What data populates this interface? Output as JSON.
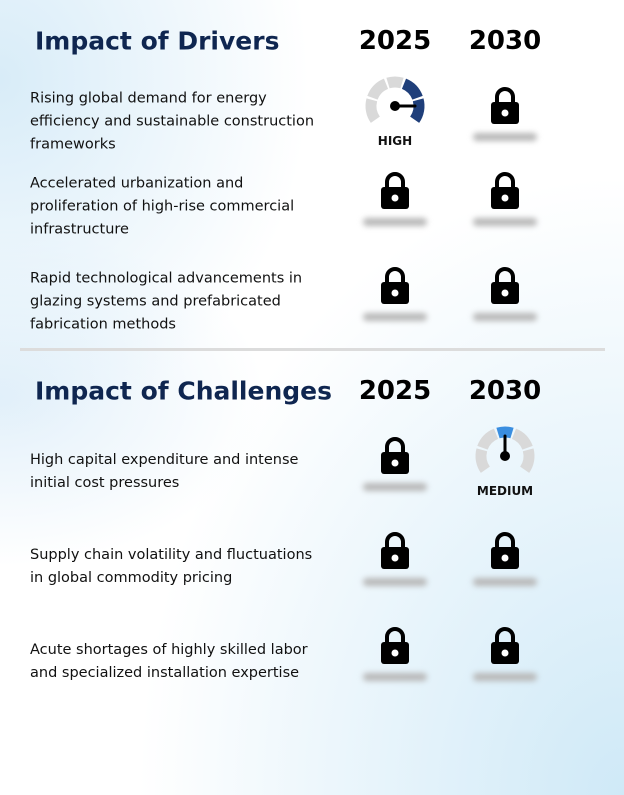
{
  "sections": [
    {
      "title": "Impact of Drivers",
      "years": [
        "2025",
        "2030"
      ],
      "rows": [
        {
          "text": "Rising global demand for energy efficiency and sustainable construction frameworks",
          "ratings": [
            "HIGH",
            null
          ]
        },
        {
          "text": "Accelerated urbanization and proliferation of high-rise commercial infrastructure",
          "ratings": [
            null,
            null
          ]
        },
        {
          "text": "Rapid technological advancements in glazing systems and prefabricated fabrication methods",
          "ratings": [
            null,
            null
          ]
        }
      ]
    },
    {
      "title": "Impact of Challenges",
      "years": [
        "2025",
        "2030"
      ],
      "rows": [
        {
          "text": "High capital expenditure and intense initial cost pressures",
          "ratings": [
            null,
            "MEDIUM"
          ]
        },
        {
          "text": "Supply chain volatility and fluctuations in global commodity pricing",
          "ratings": [
            null,
            null
          ]
        },
        {
          "text": "Acute shortages of highly skilled labor and specialized installation expertise",
          "ratings": [
            null,
            null
          ]
        }
      ]
    }
  ]
}
